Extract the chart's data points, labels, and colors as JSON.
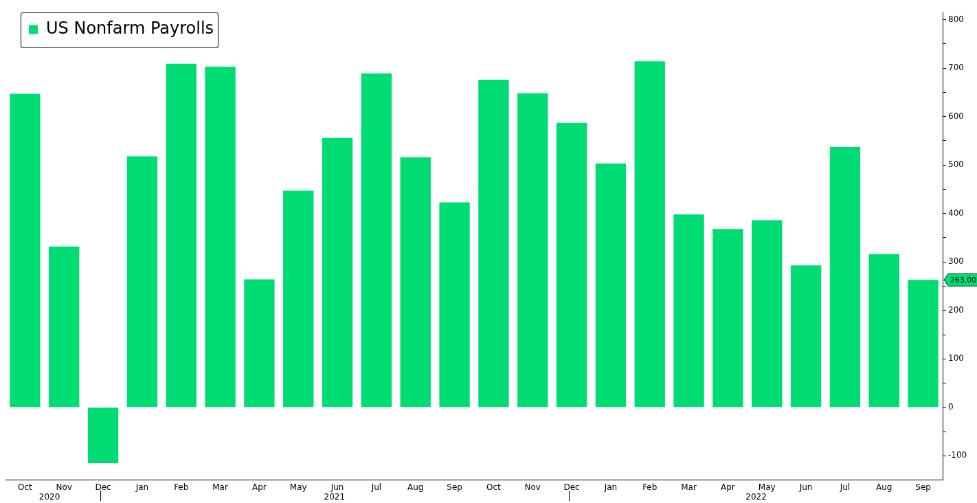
{
  "chart_data": {
    "type": "bar",
    "categories": [
      "Oct",
      "Nov",
      "Dec",
      "Jan",
      "Feb",
      "Mar",
      "Apr",
      "May",
      "Jun",
      "Jul",
      "Aug",
      "Sep",
      "Oct",
      "Nov",
      "Dec",
      "Jan",
      "Feb",
      "Mar",
      "Apr",
      "May",
      "Jun",
      "Jul",
      "Aug",
      "Sep"
    ],
    "series": [
      {
        "name": "US Nonfarm Payrolls",
        "color": "#00dc74",
        "values": [
          647,
          332,
          -115,
          518,
          709,
          703,
          264,
          447,
          556,
          689,
          516,
          423,
          676,
          648,
          587,
          503,
          714,
          398,
          368,
          386,
          293,
          537,
          316,
          263
        ]
      }
    ],
    "annotations": [
      "2020",
      "2021",
      "2022",
      "263.00"
    ],
    "ylim": [
      -150,
      815
    ],
    "yticks": [
      -100,
      {
        "value": -50,
        "label": null
      },
      0,
      {
        "value": 50,
        "label": null
      },
      100,
      {
        "value": 150,
        "label": null
      },
      200,
      {
        "value": 250,
        "label": null
      },
      300,
      {
        "value": 350,
        "label": null
      },
      400,
      {
        "value": 450,
        "label": null
      },
      500,
      {
        "value": 550,
        "label": null
      },
      600,
      {
        "value": 650,
        "label": null
      },
      700,
      {
        "value": 750,
        "label": null
      },
      800
    ],
    "grid": false,
    "legend": "top left"
  }
}
